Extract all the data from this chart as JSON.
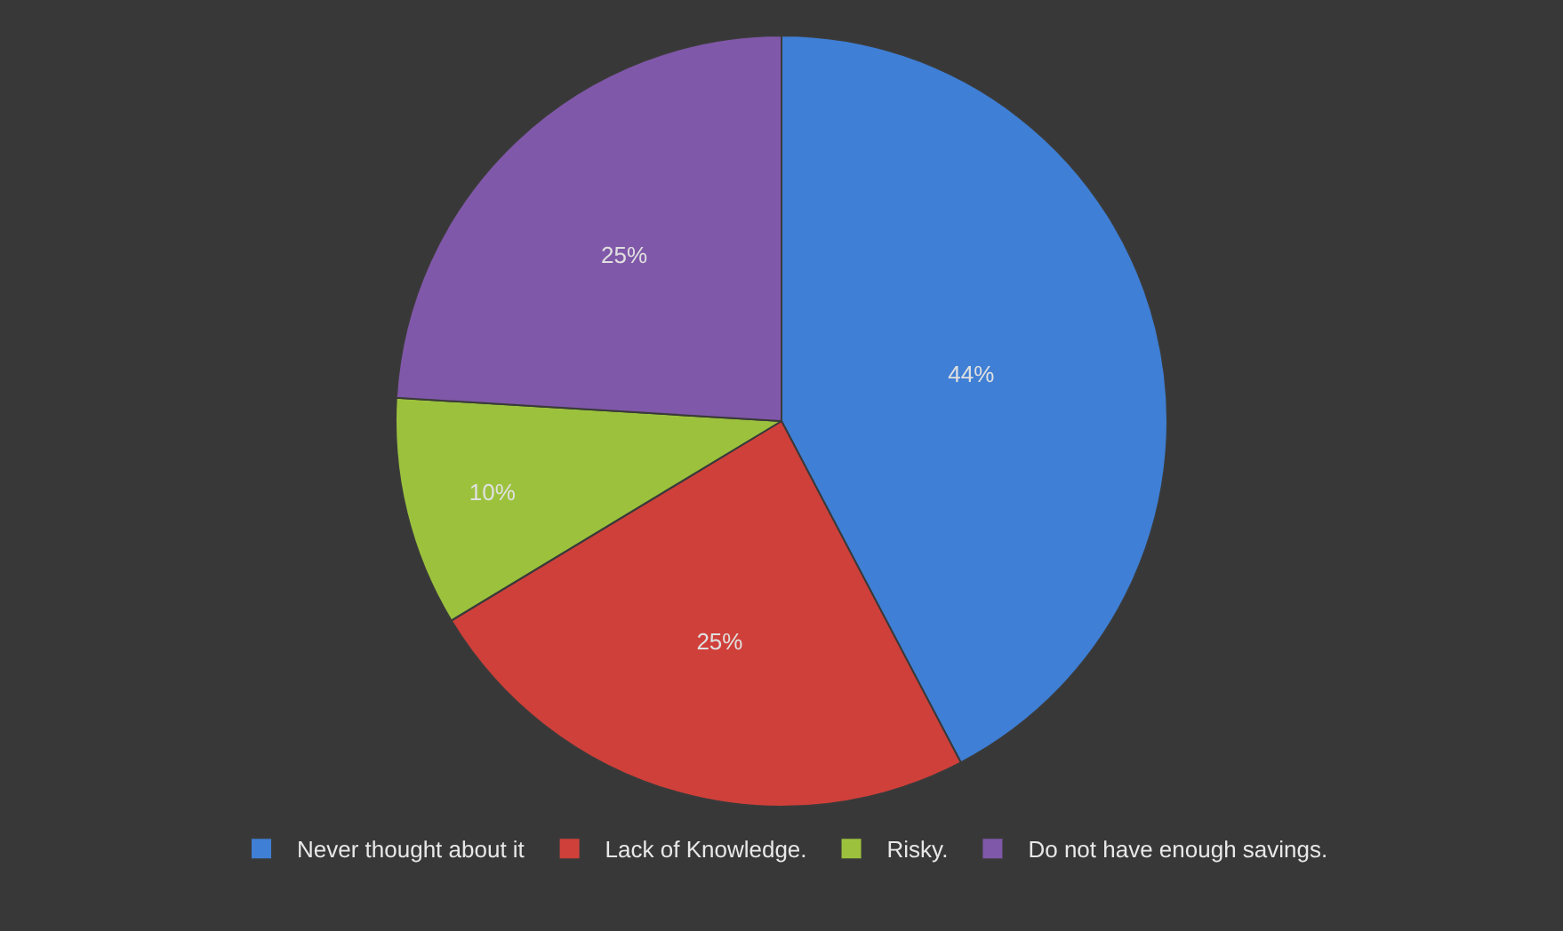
{
  "chart_data": {
    "type": "pie",
    "categories": [
      "Never thought about it",
      "Lack of Knowledge.",
      "Risky.",
      "Do not have enough savings."
    ],
    "values": [
      44,
      25,
      10,
      25
    ],
    "value_labels": [
      "44%",
      "25%",
      "10%",
      "25%"
    ],
    "colors": [
      "#3f7fd5",
      "#d0403a",
      "#9cc23d",
      "#8058a9"
    ],
    "legend": "bottom"
  }
}
